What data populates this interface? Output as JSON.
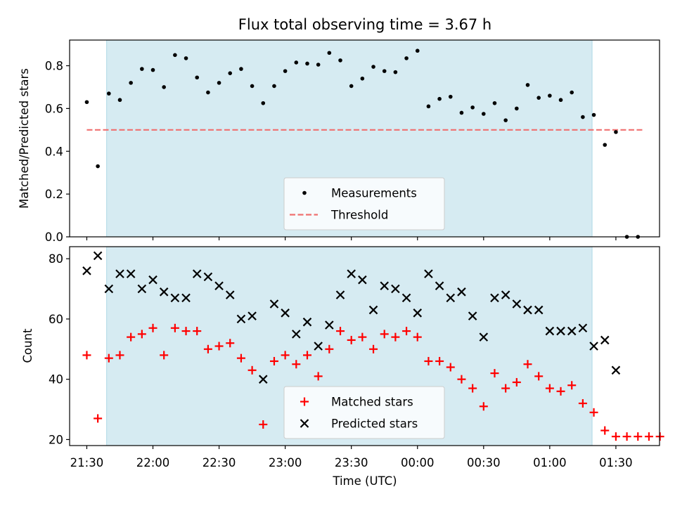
{
  "chart_data": {
    "title": "Flux total observing time = 3.67 h",
    "xlabel": "Time (UTC)",
    "x_ticks": [
      "21:30",
      "22:00",
      "22:30",
      "23:00",
      "23:30",
      "00:00",
      "00:30",
      "01:00",
      "01:30"
    ],
    "x_range_hours_after_2130": [
      -0.13,
      4.33
    ],
    "observing_window_hours_after_2130": [
      0.15,
      3.82
    ],
    "window_color": "#add8e6",
    "panels": [
      {
        "type": "scatter",
        "ylabel": "Matched/Predicted stars",
        "ylim": [
          0,
          0.92
        ],
        "yticks": [
          "0.0",
          "0.2",
          "0.4",
          "0.6",
          "0.8"
        ],
        "ytick_values": [
          0,
          0.2,
          0.4,
          0.6,
          0.8
        ],
        "legend_position": "lower-center",
        "threshold": {
          "name": "Threshold",
          "value": 0.5,
          "x_from": 0,
          "x_to": 4.2,
          "color": "#f07070",
          "style": "dashed"
        },
        "series": [
          {
            "name": "Measurements",
            "marker": "dot",
            "color": "#000000",
            "x": [
              0,
              0.0833,
              0.1667,
              0.25,
              0.3333,
              0.4167,
              0.5,
              0.5833,
              0.6667,
              0.75,
              0.8333,
              0.9167,
              1.0,
              1.0833,
              1.1667,
              1.25,
              1.3333,
              1.4167,
              1.5,
              1.5833,
              1.6667,
              1.75,
              1.8333,
              1.9167,
              2.0,
              2.0833,
              2.1667,
              2.25,
              2.3333,
              2.4167,
              2.5,
              2.5833,
              2.6667,
              2.75,
              2.8333,
              2.9167,
              3.0,
              3.0833,
              3.1667,
              3.25,
              3.3333,
              3.4167,
              3.5,
              3.5833,
              3.6667,
              3.75,
              3.8333,
              3.9167,
              4.0,
              4.0833,
              4.1667
            ],
            "y": [
              0.63,
              0.33,
              0.67,
              0.64,
              0.72,
              0.785,
              0.78,
              0.7,
              0.85,
              0.835,
              0.745,
              0.675,
              0.72,
              0.765,
              0.785,
              0.705,
              0.625,
              0.705,
              0.775,
              0.815,
              0.81,
              0.805,
              0.86,
              0.825,
              0.705,
              0.74,
              0.795,
              0.775,
              0.77,
              0.835,
              0.87,
              0.61,
              0.645,
              0.655,
              0.58,
              0.605,
              0.575,
              0.625,
              0.545,
              0.6,
              0.71,
              0.65,
              0.66,
              0.64,
              0.675,
              0.56,
              0.57,
              0.43,
              0.49,
              0.0,
              0.0
            ]
          }
        ]
      },
      {
        "type": "scatter",
        "ylabel": "Count",
        "ylim": [
          18,
          84
        ],
        "yticks": [
          "20",
          "40",
          "60",
          "80"
        ],
        "ytick_values": [
          20,
          40,
          60,
          80
        ],
        "legend_position": "lower-center",
        "series": [
          {
            "name": "Matched stars",
            "marker": "plus",
            "color": "#ff0000",
            "x": [
              0,
              0.0833,
              0.1667,
              0.25,
              0.3333,
              0.4167,
              0.5,
              0.5833,
              0.6667,
              0.75,
              0.8333,
              0.9167,
              1.0,
              1.0833,
              1.1667,
              1.25,
              1.3333,
              1.4167,
              1.5,
              1.5833,
              1.6667,
              1.75,
              1.8333,
              1.9167,
              2.0,
              2.0833,
              2.1667,
              2.25,
              2.3333,
              2.4167,
              2.5,
              2.5833,
              2.6667,
              2.75,
              2.8333,
              2.9167,
              3.0,
              3.0833,
              3.1667,
              3.25,
              3.3333,
              3.4167,
              3.5,
              3.5833,
              3.6667,
              3.75,
              3.8333,
              3.9167,
              4.0,
              4.0833,
              4.1667,
              4.25,
              4.3333
            ],
            "y": [
              48,
              27,
              47,
              48,
              54,
              55,
              57,
              48,
              57,
              56,
              56,
              50,
              51,
              52,
              47,
              43,
              25,
              46,
              48,
              45,
              48,
              41,
              50,
              56,
              53,
              54,
              50,
              55,
              54,
              56,
              54,
              46,
              46,
              44,
              40,
              37,
              31,
              42,
              37,
              39,
              45,
              41,
              37,
              36,
              38,
              32,
              29,
              23,
              21,
              21,
              21,
              21,
              21
            ]
          },
          {
            "name": "Predicted stars",
            "marker": "x",
            "color": "#000000",
            "x": [
              0,
              0.0833,
              0.1667,
              0.25,
              0.3333,
              0.4167,
              0.5,
              0.5833,
              0.6667,
              0.75,
              0.8333,
              0.9167,
              1.0,
              1.0833,
              1.1667,
              1.25,
              1.3333,
              1.4167,
              1.5,
              1.5833,
              1.6667,
              1.75,
              1.8333,
              1.9167,
              2.0,
              2.0833,
              2.1667,
              2.25,
              2.3333,
              2.4167,
              2.5,
              2.5833,
              2.6667,
              2.75,
              2.8333,
              2.9167,
              3.0,
              3.0833,
              3.1667,
              3.25,
              3.3333,
              3.4167,
              3.5,
              3.5833,
              3.6667,
              3.75,
              3.8333,
              3.9167,
              4.0
            ],
            "y": [
              76,
              81,
              70,
              75,
              75,
              70,
              73,
              69,
              67,
              67,
              75,
              74,
              71,
              68,
              60,
              61,
              40,
              65,
              62,
              55,
              59,
              51,
              58,
              68,
              75,
              73,
              63,
              71,
              70,
              67,
              62,
              75,
              71,
              67,
              69,
              61,
              54,
              67,
              68,
              65,
              63,
              63,
              56,
              56,
              56,
              57,
              51,
              53,
              43
            ]
          }
        ]
      }
    ]
  }
}
